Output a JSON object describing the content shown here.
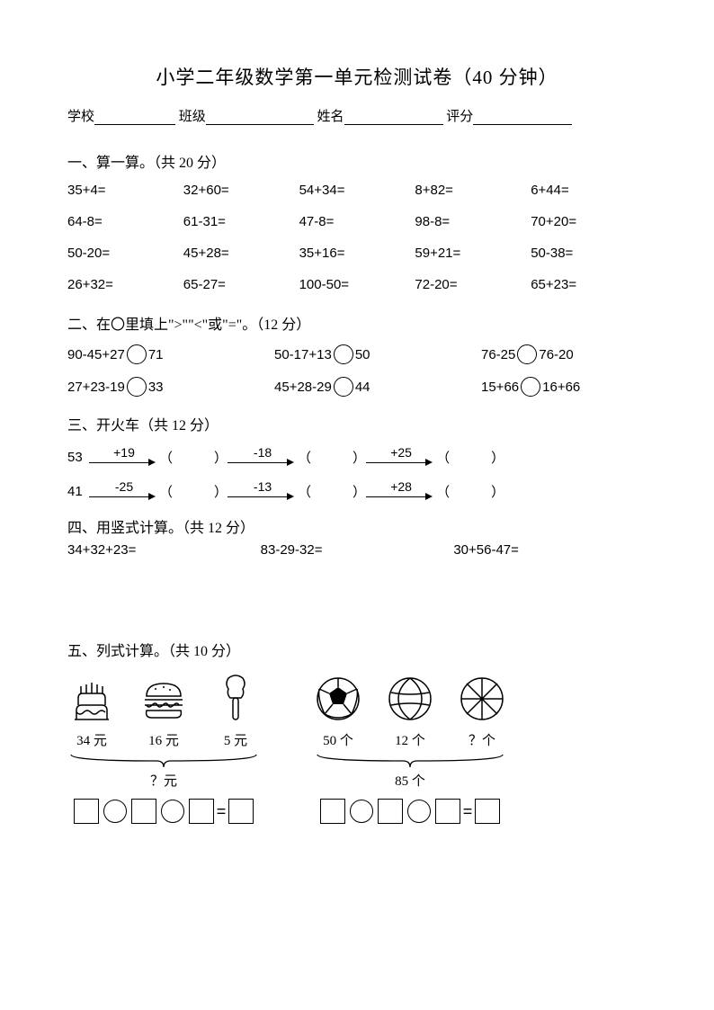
{
  "title": "小学二年级数学第一单元检测试卷（40 分钟）",
  "info": {
    "school_label": "学校",
    "class_label": "班级",
    "name_label": "姓名",
    "score_label": "评分"
  },
  "q1": {
    "head": "一、算一算。（共 20 分）",
    "items": [
      "35+4=",
      "32+60=",
      "54+34=",
      "8+82=",
      "6+44=",
      "64-8=",
      "61-31=",
      "47-8=",
      "98-8=",
      "70+20=",
      "50-20=",
      "45+28=",
      "35+16=",
      "59+21=",
      "50-38=",
      "26+32=",
      "65-27=",
      "100-50=",
      "72-20=",
      "65+23="
    ]
  },
  "q2": {
    "head": "二、在〇里填上\">\"\"<\"或\"=\"。（12 分）",
    "rows": [
      [
        {
          "l": "90-45+27",
          "r": "71"
        },
        {
          "l": "50-17+13",
          "r": "50"
        },
        {
          "l": "76-25",
          "r": "76-20"
        }
      ],
      [
        {
          "l": "27+23-19",
          "r": "33"
        },
        {
          "l": "45+28-29",
          "r": "44"
        },
        {
          "l": "15+66",
          "r": "16+66"
        }
      ]
    ]
  },
  "q3": {
    "head": "三、开火车（共 12 分）",
    "rows": [
      {
        "start": "53",
        "ops": [
          "+19",
          "-18",
          "+25"
        ]
      },
      {
        "start": "41",
        "ops": [
          "-25",
          "-13",
          "+28"
        ]
      }
    ]
  },
  "q4": {
    "head": "四、用竖式计算。（共 12 分）",
    "items": [
      "34+32+23=",
      "83-29-32=",
      "30+56-47="
    ]
  },
  "q5": {
    "head": "五、列式计算。（共 10 分）",
    "groups": [
      {
        "icons": [
          "cake",
          "burger",
          "icecream"
        ],
        "labels": [
          "34 元",
          "16 元",
          "5 元"
        ],
        "brace_label": "？元",
        "eq_parts": 3
      },
      {
        "icons": [
          "soccer",
          "volleyball",
          "basketball"
        ],
        "labels": [
          "50 个",
          "12 个",
          "？个"
        ],
        "brace_label": "85 个",
        "eq_parts": 3
      }
    ]
  }
}
